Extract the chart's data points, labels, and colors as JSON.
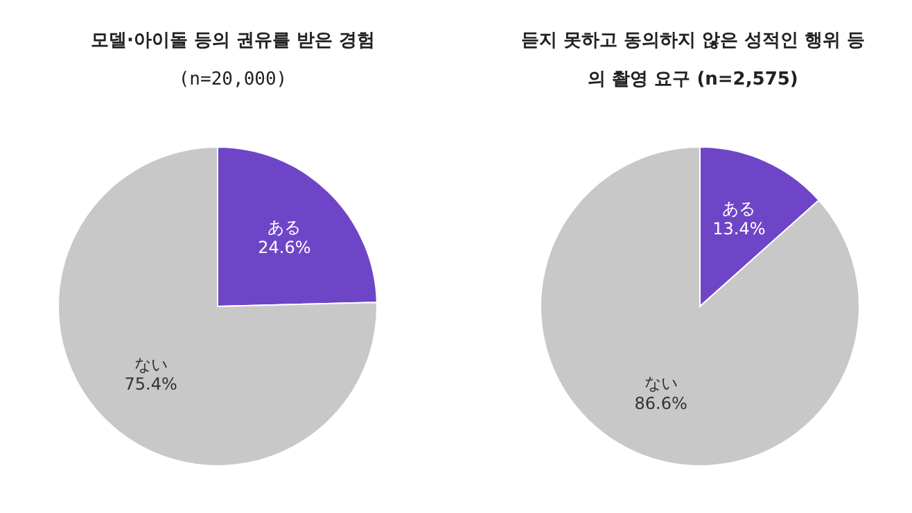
{
  "chart_data": [
    {
      "type": "pie",
      "title": "모델·아이돌 등의 권유를 받은 경험",
      "subtitle": "(n=20,000)",
      "categories": [
        "ある",
        "ない"
      ],
      "values": [
        24.6,
        75.4
      ],
      "colors": [
        "#6f45c8",
        "#c8c8c8"
      ],
      "value_labels": [
        "24.6%",
        "75.4%"
      ]
    },
    {
      "type": "pie",
      "title": "듣지 못하고 동의하지 않은 성적인 행위 등의 촬영 요구 (n=2,575)",
      "categories": [
        "ある",
        "ない"
      ],
      "values": [
        13.4,
        86.6
      ],
      "colors": [
        "#6f45c8",
        "#c8c8c8"
      ],
      "value_labels": [
        "13.4%",
        "86.6%"
      ]
    }
  ]
}
